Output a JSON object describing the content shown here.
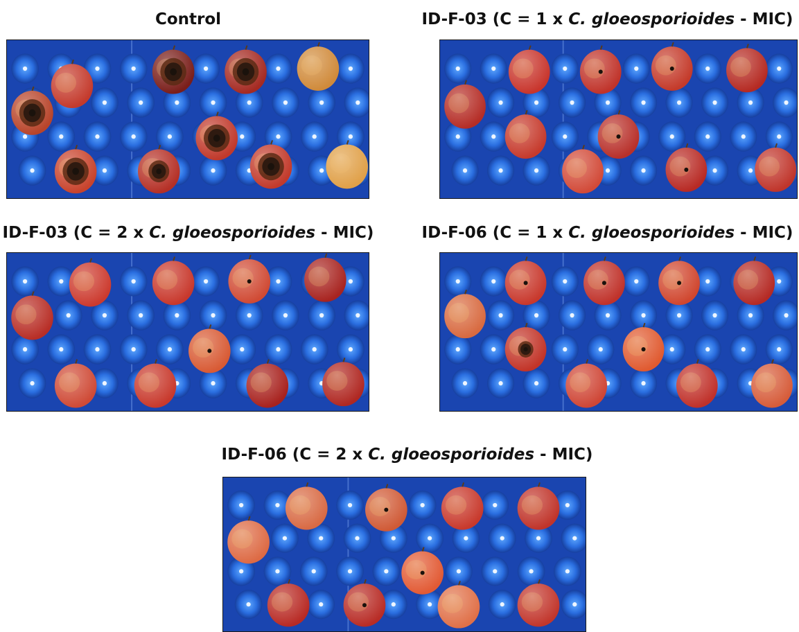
{
  "figure": {
    "panels": [
      {
        "title_pre": "Control",
        "title_italic": "",
        "title_post": "",
        "apples": [
          [
            0.18,
            0.29,
            0,
            "#c43a2c",
            1.0
          ],
          [
            0.46,
            0.2,
            1,
            "#7a1e1a",
            1.0
          ],
          [
            0.66,
            0.2,
            1,
            "#a52a22",
            1.0
          ],
          [
            0.86,
            0.18,
            0,
            "#d08a3a",
            0
          ],
          [
            0.07,
            0.46,
            1,
            "#b8442a",
            1.0
          ],
          [
            0.58,
            0.62,
            1,
            "#c0392b",
            1.0
          ],
          [
            0.19,
            0.83,
            1,
            "#c8432c",
            1.0
          ],
          [
            0.42,
            0.83,
            1,
            "#b53026",
            0.8
          ],
          [
            0.73,
            0.8,
            1,
            "#c23a2b",
            1.0
          ],
          [
            0.94,
            0.8,
            0,
            "#e0a048",
            0
          ]
        ]
      },
      {
        "title_pre": "ID-F-03 (C = 1 x ",
        "title_italic": "C. gloeosporioides",
        "title_post": " - MIC)",
        "apples": [
          [
            0.25,
            0.2,
            0,
            "#c8352c",
            0
          ],
          [
            0.45,
            0.2,
            1,
            "#c0332a",
            0.2
          ],
          [
            0.65,
            0.18,
            1,
            "#c43a2a",
            0.2
          ],
          [
            0.86,
            0.19,
            0,
            "#b52a22",
            0
          ],
          [
            0.07,
            0.42,
            0,
            "#b52d26",
            0
          ],
          [
            0.24,
            0.61,
            0,
            "#c63a2c",
            0
          ],
          [
            0.5,
            0.61,
            1,
            "#b8302a",
            0.2
          ],
          [
            0.4,
            0.83,
            0,
            "#d24a38",
            0
          ],
          [
            0.69,
            0.82,
            1,
            "#b82a24",
            0.2
          ],
          [
            0.94,
            0.82,
            0,
            "#c0352b",
            0
          ]
        ]
      },
      {
        "title_pre": "ID-F-03 (C = 2 x ",
        "title_italic": "C. gloeosporioides",
        "title_post": " - MIC)",
        "apples": [
          [
            0.23,
            0.2,
            0,
            "#cc3a2e",
            0
          ],
          [
            0.46,
            0.19,
            0,
            "#c8382c",
            0
          ],
          [
            0.67,
            0.18,
            1,
            "#d04a34",
            0.2
          ],
          [
            0.88,
            0.17,
            0,
            "#a82420",
            0
          ],
          [
            0.07,
            0.41,
            0,
            "#b82e26",
            0
          ],
          [
            0.56,
            0.62,
            1,
            "#d85a34",
            0.2
          ],
          [
            0.19,
            0.84,
            0,
            "#cf4a36",
            0
          ],
          [
            0.41,
            0.84,
            0,
            "#c8392c",
            0
          ],
          [
            0.72,
            0.84,
            0,
            "#a8221e",
            0
          ],
          [
            0.93,
            0.83,
            0,
            "#b02822",
            0
          ]
        ]
      },
      {
        "title_pre": "ID-F-06 (C = 1 x ",
        "title_italic": "C. gloeosporioides",
        "title_post": " - MIC)",
        "apples": [
          [
            0.24,
            0.19,
            1,
            "#c8382c",
            0.35
          ],
          [
            0.46,
            0.19,
            1,
            "#c0322a",
            0.35
          ],
          [
            0.67,
            0.19,
            1,
            "#d0462e",
            0.35
          ],
          [
            0.88,
            0.19,
            0,
            "#b52a24",
            0
          ],
          [
            0.07,
            0.4,
            0,
            "#d86a40",
            0
          ],
          [
            0.24,
            0.61,
            1,
            "#c23428",
            0.6
          ],
          [
            0.57,
            0.61,
            1,
            "#e05a30",
            0.35
          ],
          [
            0.41,
            0.84,
            0,
            "#cf4636",
            0
          ],
          [
            0.72,
            0.84,
            0,
            "#c0312a",
            0
          ],
          [
            0.93,
            0.84,
            0,
            "#d65c3a",
            0
          ]
        ]
      },
      {
        "title_pre": "ID-F-06 (C = 2 x ",
        "title_italic": "C. gloeosporioides",
        "title_post": " - MIC)",
        "apples": [
          [
            0.23,
            0.2,
            0,
            "#d86a44",
            0
          ],
          [
            0.45,
            0.21,
            1,
            "#d05a36",
            0.35
          ],
          [
            0.66,
            0.2,
            0,
            "#c8392c",
            0
          ],
          [
            0.87,
            0.2,
            0,
            "#c0342a",
            0
          ],
          [
            0.07,
            0.42,
            0,
            "#dd6a44",
            0
          ],
          [
            0.55,
            0.62,
            1,
            "#e25a34",
            0.25
          ],
          [
            0.18,
            0.83,
            0,
            "#b82a24",
            0
          ],
          [
            0.39,
            0.83,
            1,
            "#b82c26",
            0.2
          ],
          [
            0.65,
            0.84,
            0,
            "#e07048",
            0
          ],
          [
            0.87,
            0.83,
            0,
            "#c2362c",
            0
          ]
        ]
      }
    ]
  }
}
